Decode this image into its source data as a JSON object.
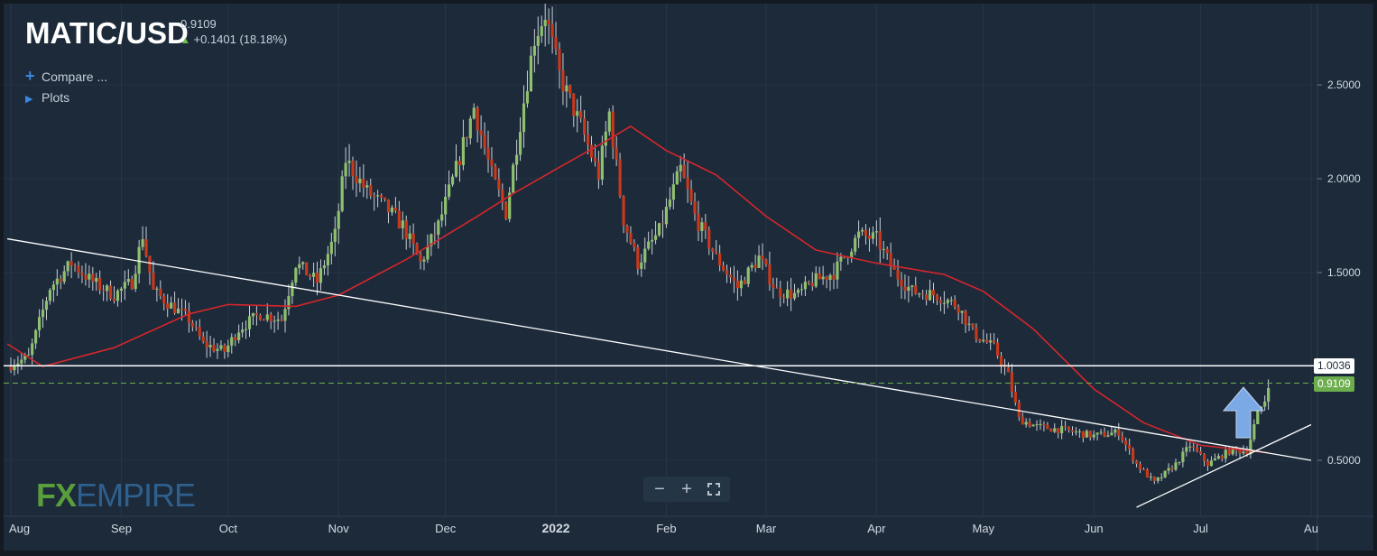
{
  "header": {
    "symbol": "MATIC/USD",
    "last_price": "0.9109",
    "change_text": "+0.1401 (18.18%)"
  },
  "menu": {
    "compare_label": "Compare ...",
    "plots_label": "Plots"
  },
  "zoom": {
    "minus": "−",
    "plus": "+",
    "fit_icon": "fullscreen-icon"
  },
  "logo": {
    "fx": "FX",
    "empire": "EMPIRE"
  },
  "colors": {
    "background": "#1c2a3a",
    "bull": "#8fc06e",
    "bear": "#c8391c",
    "ma": "#d6262b",
    "trendline": "#ffffff",
    "last_price": "#6cae4e",
    "arrow": "#7aa9e6"
  },
  "chart_data": {
    "type": "candlestick",
    "y_ticks": [
      "0.5000",
      "1.5000",
      "2.0000",
      "2.5000"
    ],
    "y_axis_values": [
      0.5,
      1.5,
      2.0,
      2.5
    ],
    "x_ticks": [
      "Aug",
      "Sep",
      "Oct",
      "Nov",
      "Dec",
      "2022",
      "Feb",
      "Mar",
      "Apr",
      "May",
      "Jun",
      "Jul",
      "Au"
    ],
    "x_tick_dates": [
      "2021-08-01",
      "2021-09-01",
      "2021-10-01",
      "2021-11-01",
      "2021-12-01",
      "2022-01-01",
      "2022-02-01",
      "2022-03-01",
      "2022-04-01",
      "2022-05-01",
      "2022-06-01",
      "2022-07-01",
      "2022-08-01"
    ],
    "price_labels": {
      "resistance": {
        "value": 1.0036,
        "text": "1.0036"
      },
      "last": {
        "value": 0.9109,
        "text": "0.9109"
      }
    },
    "close_path": [
      [
        "2021-07-31",
        1.0
      ],
      [
        "2021-08-06",
        1.05
      ],
      [
        "2021-08-12",
        1.42
      ],
      [
        "2021-08-18",
        1.55
      ],
      [
        "2021-08-24",
        1.45
      ],
      [
        "2021-08-30",
        1.38
      ],
      [
        "2021-09-04",
        1.45
      ],
      [
        "2021-09-07",
        1.7
      ],
      [
        "2021-09-10",
        1.4
      ],
      [
        "2021-09-20",
        1.25
      ],
      [
        "2021-09-24",
        1.12
      ],
      [
        "2021-09-30",
        1.08
      ],
      [
        "2021-10-04",
        1.2
      ],
      [
        "2021-10-10",
        1.28
      ],
      [
        "2021-10-16",
        1.25
      ],
      [
        "2021-10-20",
        1.55
      ],
      [
        "2021-10-26",
        1.45
      ],
      [
        "2021-10-31",
        1.7
      ],
      [
        "2021-11-03",
        2.1
      ],
      [
        "2021-11-09",
        1.93
      ],
      [
        "2021-11-14",
        1.85
      ],
      [
        "2021-11-19",
        1.75
      ],
      [
        "2021-11-24",
        1.55
      ],
      [
        "2021-11-29",
        1.75
      ],
      [
        "2021-12-04",
        2.05
      ],
      [
        "2021-12-09",
        2.38
      ],
      [
        "2021-12-14",
        2.02
      ],
      [
        "2021-12-18",
        1.82
      ],
      [
        "2021-12-22",
        2.3
      ],
      [
        "2021-12-26",
        2.75
      ],
      [
        "2021-12-29",
        2.88
      ],
      [
        "2022-01-02",
        2.55
      ],
      [
        "2022-01-08",
        2.28
      ],
      [
        "2022-01-13",
        2.02
      ],
      [
        "2022-01-16",
        2.35
      ],
      [
        "2022-01-20",
        1.78
      ],
      [
        "2022-01-24",
        1.55
      ],
      [
        "2022-01-30",
        1.72
      ],
      [
        "2022-02-05",
        2.05
      ],
      [
        "2022-02-09",
        1.8
      ],
      [
        "2022-02-15",
        1.58
      ],
      [
        "2022-02-21",
        1.42
      ],
      [
        "2022-02-27",
        1.58
      ],
      [
        "2022-03-04",
        1.4
      ],
      [
        "2022-03-10",
        1.38
      ],
      [
        "2022-03-14",
        1.45
      ],
      [
        "2022-03-20",
        1.5
      ],
      [
        "2022-03-27",
        1.7
      ],
      [
        "2022-04-01",
        1.68
      ],
      [
        "2022-04-06",
        1.5
      ],
      [
        "2022-04-11",
        1.4
      ],
      [
        "2022-04-18",
        1.38
      ],
      [
        "2022-04-24",
        1.32
      ],
      [
        "2022-04-28",
        1.18
      ],
      [
        "2022-05-04",
        1.1
      ],
      [
        "2022-05-08",
        0.95
      ],
      [
        "2022-05-11",
        0.72
      ],
      [
        "2022-05-16",
        0.68
      ],
      [
        "2022-05-24",
        0.66
      ],
      [
        "2022-06-01",
        0.63
      ],
      [
        "2022-06-08",
        0.65
      ],
      [
        "2022-06-13",
        0.48
      ],
      [
        "2022-06-18",
        0.38
      ],
      [
        "2022-06-24",
        0.48
      ],
      [
        "2022-06-28",
        0.58
      ],
      [
        "2022-07-03",
        0.48
      ],
      [
        "2022-07-09",
        0.55
      ],
      [
        "2022-07-14",
        0.55
      ],
      [
        "2022-07-17",
        0.75
      ],
      [
        "2022-07-19",
        0.82
      ],
      [
        "2022-07-20",
        0.91
      ]
    ],
    "ma_path": [
      [
        "2021-07-31",
        1.12
      ],
      [
        "2021-08-10",
        1.0
      ],
      [
        "2021-08-30",
        1.1
      ],
      [
        "2021-09-20",
        1.28
      ],
      [
        "2021-10-01",
        1.33
      ],
      [
        "2021-10-20",
        1.32
      ],
      [
        "2021-11-01",
        1.38
      ],
      [
        "2021-11-20",
        1.57
      ],
      [
        "2021-12-10",
        1.8
      ],
      [
        "2021-12-20",
        1.92
      ],
      [
        "2022-01-01",
        2.05
      ],
      [
        "2022-01-15",
        2.2
      ],
      [
        "2022-01-22",
        2.28
      ],
      [
        "2022-02-01",
        2.15
      ],
      [
        "2022-02-15",
        2.02
      ],
      [
        "2022-03-01",
        1.8
      ],
      [
        "2022-03-15",
        1.62
      ],
      [
        "2022-04-01",
        1.55
      ],
      [
        "2022-04-20",
        1.49
      ],
      [
        "2022-05-01",
        1.4
      ],
      [
        "2022-05-15",
        1.2
      ],
      [
        "2022-06-01",
        0.88
      ],
      [
        "2022-06-15",
        0.7
      ],
      [
        "2022-07-01",
        0.58
      ],
      [
        "2022-07-20",
        0.54
      ]
    ],
    "trendlines": [
      {
        "from": [
          "2021-07-31",
          1.68
        ],
        "to": [
          "2022-08-01",
          0.5
        ]
      },
      {
        "from": [
          "2022-06-13",
          0.25
        ],
        "to": [
          "2022-08-01",
          0.69
        ]
      }
    ],
    "resistance_level": 1.0036
  }
}
